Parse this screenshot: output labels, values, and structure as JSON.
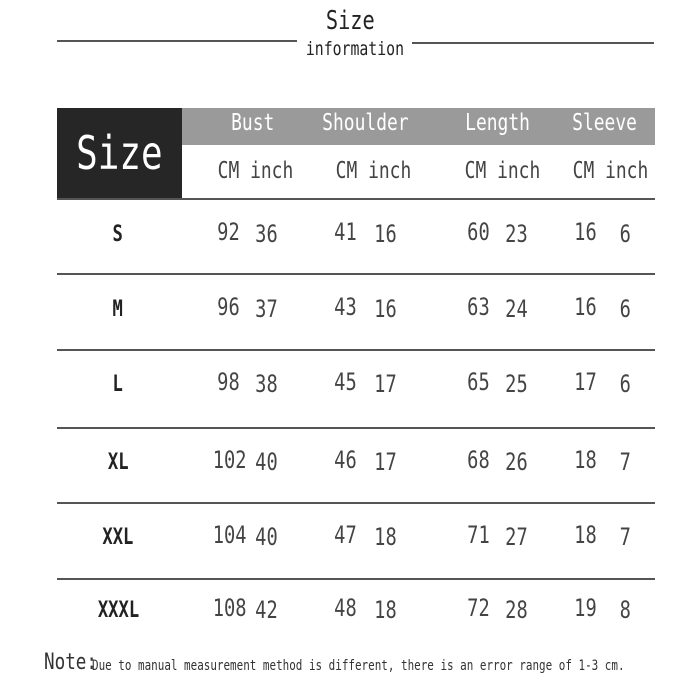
{
  "title": {
    "line1": "Size",
    "line2": "information"
  },
  "table": {
    "size_header": "Size",
    "columns": [
      {
        "label": "Bust",
        "units": "CM inch"
      },
      {
        "label": "Shoulder",
        "units": "CM inch"
      },
      {
        "label": "Length",
        "units": "CM inch"
      },
      {
        "label": "Sleeve",
        "units": "CM inch"
      }
    ],
    "rows": [
      {
        "size": "S",
        "values": [
          "92",
          "36",
          "41",
          "16",
          "60",
          "23",
          "16",
          "6"
        ]
      },
      {
        "size": "M",
        "values": [
          "96",
          "37",
          "43",
          "16",
          "63",
          "24",
          "16",
          "6"
        ]
      },
      {
        "size": "L",
        "values": [
          "98",
          "38",
          "45",
          "17",
          "65",
          "25",
          "17",
          "6"
        ]
      },
      {
        "size": "XL",
        "values": [
          "102",
          "40",
          "46",
          "17",
          "68",
          "26",
          "18",
          "7"
        ]
      },
      {
        "size": "XXL",
        "values": [
          "104",
          "40",
          "47",
          "18",
          "71",
          "27",
          "18",
          "7"
        ]
      },
      {
        "size": "XXXL",
        "values": [
          "108",
          "42",
          "48",
          "18",
          "72",
          "28",
          "19",
          "8"
        ]
      }
    ]
  },
  "note": {
    "label": "Note:",
    "text": "Due to manual measurement method is different, there is an error range of 1-3 cm."
  },
  "colors": {
    "size_box": "#262626",
    "header_bar": "#9a9a9a"
  }
}
